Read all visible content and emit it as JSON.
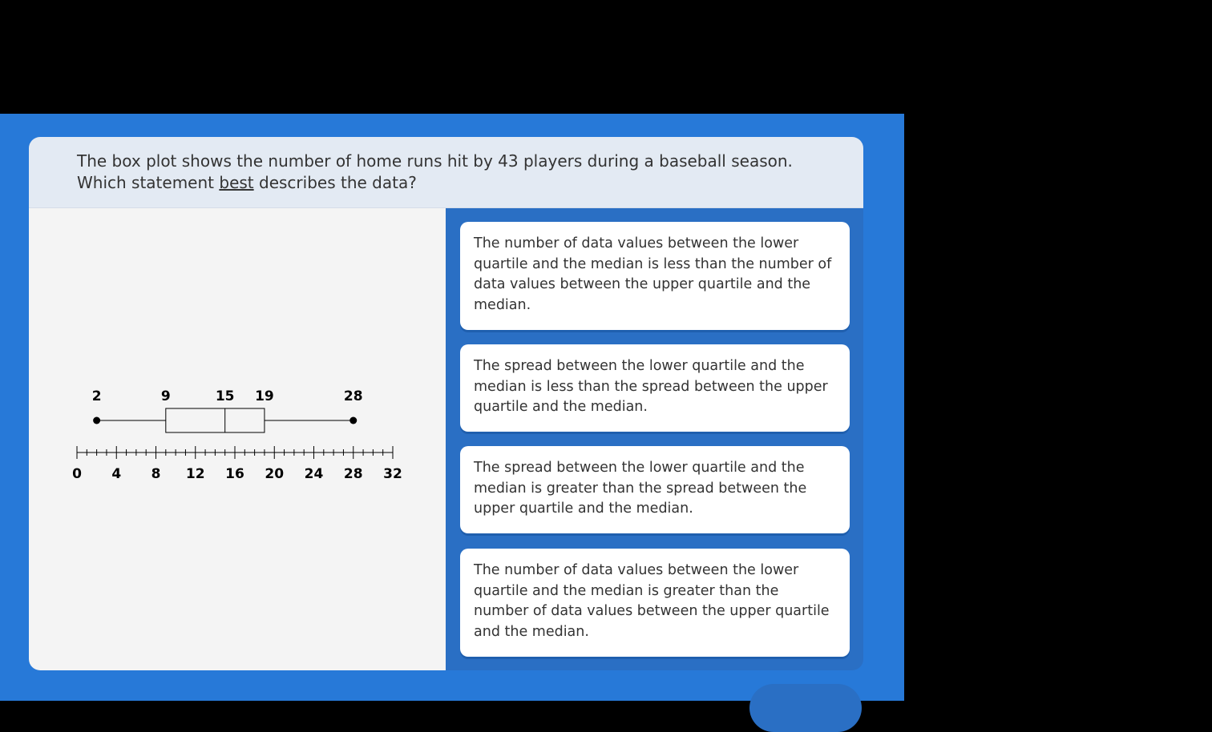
{
  "question": {
    "line1": "The box plot shows the number of home runs hit by 43 players during a baseball season.",
    "line2_pre": "Which statement ",
    "line2_em": "best",
    "line2_post": " describes the data?"
  },
  "chart_data": {
    "type": "boxplot",
    "min": 2,
    "q1": 9,
    "median": 15,
    "q3": 19,
    "max": 28,
    "value_labels": [
      "2",
      "9",
      "15",
      "19",
      "28"
    ],
    "xlim": [
      0,
      32
    ],
    "major_ticks": [
      0,
      4,
      8,
      12,
      16,
      20,
      24,
      28,
      32
    ],
    "tick_labels": [
      "0",
      "4",
      "8",
      "12",
      "16",
      "20",
      "24",
      "28",
      "32"
    ],
    "minor_step": 1
  },
  "options": [
    "The number of data values between the lower quartile and the median is less than the number of data values between the upper quartile and the median.",
    "The spread between the lower quartile and the median is less than the spread between the upper quartile and the median.",
    "The spread between the lower quartile and the median is greater than the spread between the upper quartile and the median.",
    "The number of data values between the lower quartile and the median is greater than the number of data values between the upper quartile and the median."
  ],
  "colors": {
    "background": "#2779d8",
    "header": "#e3eaf3",
    "panel": "#f4f4f4"
  }
}
